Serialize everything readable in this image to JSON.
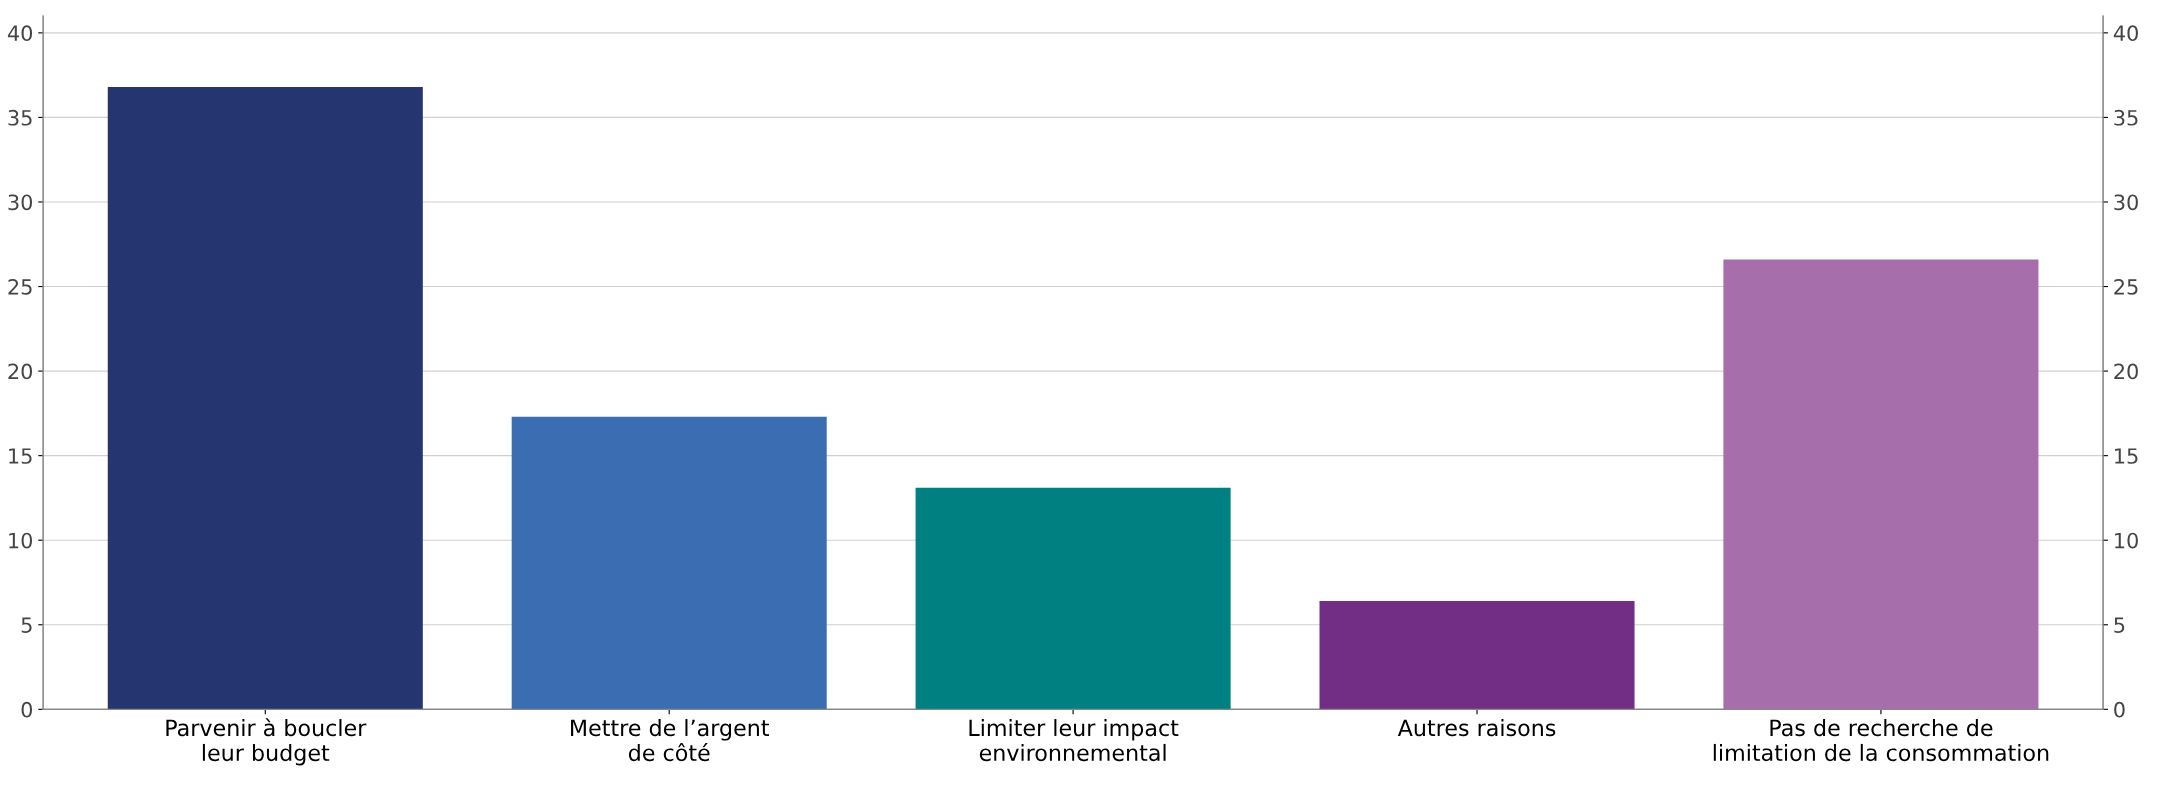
{
  "chart_data": {
    "type": "bar",
    "categories": [
      "Parvenir à boucler\nleur budget",
      "Mettre de l’argent\nde côté",
      "Limiter leur impact\nenvironnemental",
      "Autres raisons",
      "Pas de recherche de\nlimitation de la consommation"
    ],
    "values": [
      36.8,
      17.3,
      13.1,
      6.4,
      26.6
    ],
    "colors": [
      "#253570",
      "#3b6db3",
      "#008080",
      "#722e85",
      "#a66fab"
    ],
    "ylim": [
      0,
      41
    ],
    "yticks": [
      0,
      5,
      10,
      15,
      20,
      25,
      30,
      35,
      40
    ],
    "y2lim": [
      0,
      41
    ],
    "y2ticks": [
      0,
      5,
      10,
      15,
      20,
      25,
      30,
      35,
      40
    ],
    "grid": "y"
  }
}
